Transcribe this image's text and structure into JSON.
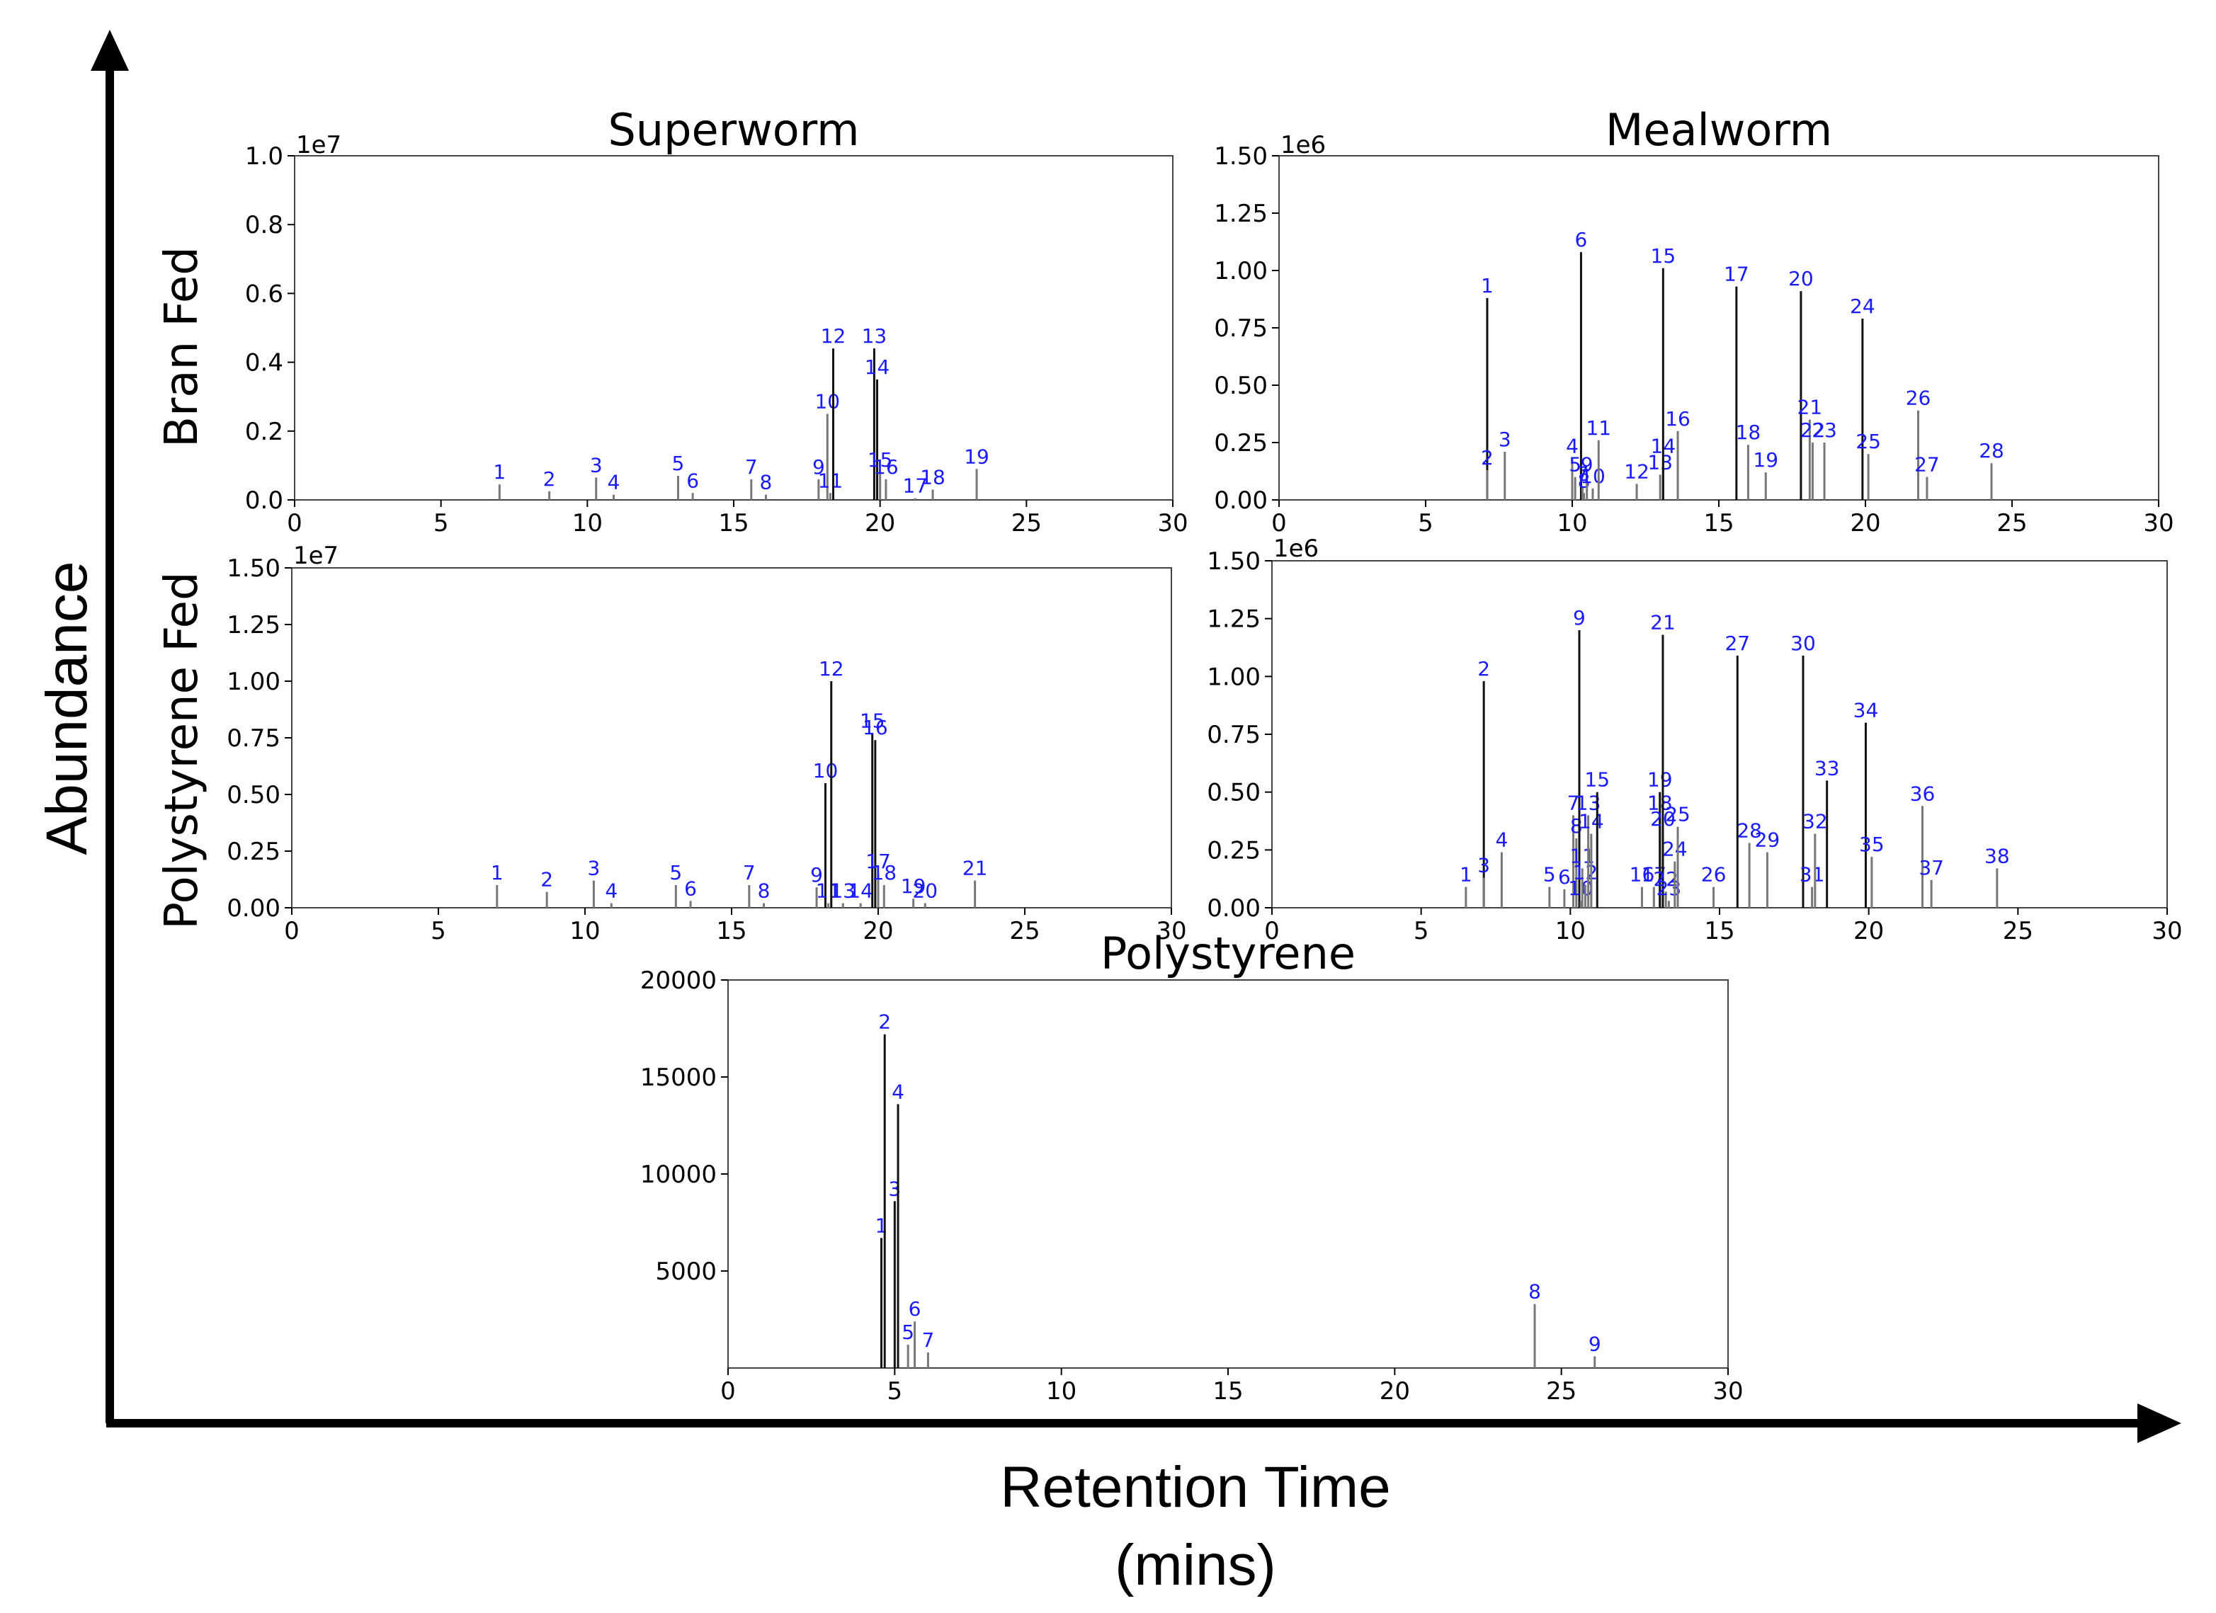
{
  "figure": {
    "y_axis_label": "Abundance",
    "x_axis_label_line1": "Retention Time",
    "x_axis_label_line2": "(mins)",
    "row_label_top": "Bran Fed",
    "row_label_bottom": "Polystyrene Fed"
  },
  "chart_data": [
    {
      "id": "sw_bran",
      "type": "bar",
      "title": "Superworm",
      "xlim": [
        0,
        30
      ],
      "ylim": [
        0,
        1.0
      ],
      "xticks": [
        0,
        5,
        10,
        15,
        20,
        25,
        30
      ],
      "yticks": [
        "0.0",
        "0.2",
        "0.4",
        "0.6",
        "0.8",
        "1.0"
      ],
      "ytick_values": [
        0,
        0.2,
        0.4,
        0.6,
        0.8,
        1.0
      ],
      "exponent": "1e7",
      "peaks": [
        {
          "label": "1",
          "x": 7.0,
          "y": 0.045
        },
        {
          "label": "2",
          "x": 8.7,
          "y": 0.025
        },
        {
          "label": "3",
          "x": 10.3,
          "y": 0.065
        },
        {
          "label": "4",
          "x": 10.9,
          "y": 0.015
        },
        {
          "label": "5",
          "x": 13.1,
          "y": 0.07
        },
        {
          "label": "6",
          "x": 13.6,
          "y": 0.02
        },
        {
          "label": "7",
          "x": 15.6,
          "y": 0.06
        },
        {
          "label": "8",
          "x": 16.1,
          "y": 0.015
        },
        {
          "label": "9",
          "x": 17.9,
          "y": 0.06
        },
        {
          "label": "10",
          "x": 18.2,
          "y": 0.25
        },
        {
          "label": "11",
          "x": 18.3,
          "y": 0.02
        },
        {
          "label": "12",
          "x": 18.4,
          "y": 0.44
        },
        {
          "label": "13",
          "x": 19.8,
          "y": 0.44
        },
        {
          "label": "14",
          "x": 19.9,
          "y": 0.35
        },
        {
          "label": "15",
          "x": 20.0,
          "y": 0.08
        },
        {
          "label": "16",
          "x": 20.2,
          "y": 0.06
        },
        {
          "label": "17",
          "x": 21.2,
          "y": 0.005
        },
        {
          "label": "18",
          "x": 21.8,
          "y": 0.03
        },
        {
          "label": "19",
          "x": 23.3,
          "y": 0.09
        }
      ]
    },
    {
      "id": "mw_bran",
      "type": "bar",
      "title": "Mealworm",
      "xlim": [
        0,
        30
      ],
      "ylim": [
        0,
        1.5
      ],
      "xticks": [
        0,
        5,
        10,
        15,
        20,
        25,
        30
      ],
      "yticks": [
        "0.00",
        "0.25",
        "0.50",
        "0.75",
        "1.00",
        "1.25",
        "1.50"
      ],
      "ytick_values": [
        0,
        0.25,
        0.5,
        0.75,
        1.0,
        1.25,
        1.5
      ],
      "exponent": "1e6",
      "peaks": [
        {
          "label": "1",
          "x": 7.1,
          "y": 0.88
        },
        {
          "label": "2",
          "x": 7.1,
          "y": 0.13
        },
        {
          "label": "3",
          "x": 7.7,
          "y": 0.21
        },
        {
          "label": "4",
          "x": 10.0,
          "y": 0.18
        },
        {
          "label": "5",
          "x": 10.1,
          "y": 0.1
        },
        {
          "label": "6",
          "x": 10.3,
          "y": 1.08
        },
        {
          "label": "7",
          "x": 10.35,
          "y": 0.06
        },
        {
          "label": "8",
          "x": 10.4,
          "y": 0.03
        },
        {
          "label": "9",
          "x": 10.5,
          "y": 0.1
        },
        {
          "label": "10",
          "x": 10.7,
          "y": 0.05
        },
        {
          "label": "11",
          "x": 10.9,
          "y": 0.26
        },
        {
          "label": "12",
          "x": 12.2,
          "y": 0.07
        },
        {
          "label": "13",
          "x": 13.0,
          "y": 0.11
        },
        {
          "label": "14",
          "x": 13.1,
          "y": 0.18
        },
        {
          "label": "15",
          "x": 13.1,
          "y": 1.01
        },
        {
          "label": "16",
          "x": 13.6,
          "y": 0.3
        },
        {
          "label": "17",
          "x": 15.6,
          "y": 0.93
        },
        {
          "label": "18",
          "x": 16.0,
          "y": 0.24
        },
        {
          "label": "19",
          "x": 16.6,
          "y": 0.12
        },
        {
          "label": "20",
          "x": 17.8,
          "y": 0.91
        },
        {
          "label": "21",
          "x": 18.1,
          "y": 0.35
        },
        {
          "label": "22",
          "x": 18.2,
          "y": 0.25
        },
        {
          "label": "23",
          "x": 18.6,
          "y": 0.25
        },
        {
          "label": "24",
          "x": 19.9,
          "y": 0.79
        },
        {
          "label": "25",
          "x": 20.1,
          "y": 0.2
        },
        {
          "label": "26",
          "x": 21.8,
          "y": 0.39
        },
        {
          "label": "27",
          "x": 22.1,
          "y": 0.1
        },
        {
          "label": "28",
          "x": 24.3,
          "y": 0.16
        }
      ]
    },
    {
      "id": "sw_ps",
      "type": "bar",
      "title": "",
      "xlim": [
        0,
        30
      ],
      "ylim": [
        0,
        1.5
      ],
      "xticks": [
        0,
        5,
        10,
        15,
        20,
        25,
        30
      ],
      "yticks": [
        "0.00",
        "0.25",
        "0.50",
        "0.75",
        "1.00",
        "1.25",
        "1.50"
      ],
      "ytick_values": [
        0,
        0.25,
        0.5,
        0.75,
        1.0,
        1.25,
        1.5
      ],
      "exponent": "1e7",
      "peaks": [
        {
          "label": "1",
          "x": 7.0,
          "y": 0.1
        },
        {
          "label": "2",
          "x": 8.7,
          "y": 0.07
        },
        {
          "label": "3",
          "x": 10.3,
          "y": 0.12
        },
        {
          "label": "4",
          "x": 10.9,
          "y": 0.02
        },
        {
          "label": "5",
          "x": 13.1,
          "y": 0.1
        },
        {
          "label": "6",
          "x": 13.6,
          "y": 0.03
        },
        {
          "label": "7",
          "x": 15.6,
          "y": 0.1
        },
        {
          "label": "8",
          "x": 16.1,
          "y": 0.02
        },
        {
          "label": "9",
          "x": 17.9,
          "y": 0.09
        },
        {
          "label": "10",
          "x": 18.2,
          "y": 0.55
        },
        {
          "label": "11",
          "x": 18.3,
          "y": 0.02
        },
        {
          "label": "12",
          "x": 18.4,
          "y": 1.0
        },
        {
          "label": "13",
          "x": 18.8,
          "y": 0.02
        },
        {
          "label": "14",
          "x": 19.4,
          "y": 0.02
        },
        {
          "label": "15",
          "x": 19.8,
          "y": 0.77
        },
        {
          "label": "16",
          "x": 19.9,
          "y": 0.74
        },
        {
          "label": "17",
          "x": 20.0,
          "y": 0.15
        },
        {
          "label": "18",
          "x": 20.2,
          "y": 0.1
        },
        {
          "label": "19",
          "x": 21.2,
          "y": 0.04
        },
        {
          "label": "20",
          "x": 21.6,
          "y": 0.02
        },
        {
          "label": "21",
          "x": 23.3,
          "y": 0.12
        }
      ]
    },
    {
      "id": "mw_ps",
      "type": "bar",
      "title": "",
      "xlim": [
        0,
        30
      ],
      "ylim": [
        0,
        1.5
      ],
      "xticks": [
        0,
        5,
        10,
        15,
        20,
        25,
        30
      ],
      "yticks": [
        "0.00",
        "0.25",
        "0.50",
        "0.75",
        "1.00",
        "1.25",
        "1.50"
      ],
      "ytick_values": [
        0,
        0.25,
        0.5,
        0.75,
        1.0,
        1.25,
        1.5
      ],
      "exponent": "1e6",
      "peaks": [
        {
          "label": "1",
          "x": 6.5,
          "y": 0.09
        },
        {
          "label": "2",
          "x": 7.1,
          "y": 0.98
        },
        {
          "label": "3",
          "x": 7.1,
          "y": 0.13
        },
        {
          "label": "4",
          "x": 7.7,
          "y": 0.24
        },
        {
          "label": "5",
          "x": 9.3,
          "y": 0.09
        },
        {
          "label": "6",
          "x": 9.8,
          "y": 0.08
        },
        {
          "label": "7",
          "x": 10.1,
          "y": 0.4
        },
        {
          "label": "8",
          "x": 10.2,
          "y": 0.3
        },
        {
          "label": "9",
          "x": 10.3,
          "y": 1.2
        },
        {
          "label": "10",
          "x": 10.35,
          "y": 0.03
        },
        {
          "label": "11",
          "x": 10.4,
          "y": 0.17
        },
        {
          "label": "12",
          "x": 10.5,
          "y": 0.1
        },
        {
          "label": "13",
          "x": 10.6,
          "y": 0.4
        },
        {
          "label": "14",
          "x": 10.7,
          "y": 0.32
        },
        {
          "label": "15",
          "x": 10.9,
          "y": 0.5
        },
        {
          "label": "16",
          "x": 12.4,
          "y": 0.09
        },
        {
          "label": "17",
          "x": 12.8,
          "y": 0.09
        },
        {
          "label": "18",
          "x": 13.0,
          "y": 0.4
        },
        {
          "label": "19",
          "x": 13.0,
          "y": 0.5
        },
        {
          "label": "20",
          "x": 13.1,
          "y": 0.33
        },
        {
          "label": "21",
          "x": 13.1,
          "y": 1.18
        },
        {
          "label": "22",
          "x": 13.2,
          "y": 0.07
        },
        {
          "label": "23",
          "x": 13.3,
          "y": 0.03
        },
        {
          "label": "24",
          "x": 13.5,
          "y": 0.2
        },
        {
          "label": "25",
          "x": 13.6,
          "y": 0.35
        },
        {
          "label": "26",
          "x": 14.8,
          "y": 0.09
        },
        {
          "label": "27",
          "x": 15.6,
          "y": 1.09
        },
        {
          "label": "28",
          "x": 16.0,
          "y": 0.28
        },
        {
          "label": "29",
          "x": 16.6,
          "y": 0.24
        },
        {
          "label": "30",
          "x": 17.8,
          "y": 1.09
        },
        {
          "label": "31",
          "x": 18.1,
          "y": 0.09
        },
        {
          "label": "32",
          "x": 18.2,
          "y": 0.32
        },
        {
          "label": "33",
          "x": 18.6,
          "y": 0.55
        },
        {
          "label": "34",
          "x": 19.9,
          "y": 0.8
        },
        {
          "label": "35",
          "x": 20.1,
          "y": 0.22
        },
        {
          "label": "36",
          "x": 21.8,
          "y": 0.44
        },
        {
          "label": "37",
          "x": 22.1,
          "y": 0.12
        },
        {
          "label": "38",
          "x": 24.3,
          "y": 0.17
        }
      ]
    },
    {
      "id": "ps",
      "type": "bar",
      "title": "Polystyrene",
      "xlim": [
        0,
        30
      ],
      "ylim": [
        0,
        20000
      ],
      "xticks": [
        0,
        5,
        10,
        15,
        20,
        25,
        30
      ],
      "yticks": [
        "5000",
        "10000",
        "15000",
        "20000"
      ],
      "ytick_values": [
        5000,
        10000,
        15000,
        20000
      ],
      "exponent": "",
      "peaks": [
        {
          "label": "1",
          "x": 4.6,
          "y": 6700
        },
        {
          "label": "2",
          "x": 4.7,
          "y": 17200
        },
        {
          "label": "3",
          "x": 5.0,
          "y": 8600
        },
        {
          "label": "4",
          "x": 5.1,
          "y": 13600
        },
        {
          "label": "5",
          "x": 5.4,
          "y": 1200
        },
        {
          "label": "6",
          "x": 5.6,
          "y": 2400
        },
        {
          "label": "7",
          "x": 6.0,
          "y": 800
        },
        {
          "label": "8",
          "x": 24.2,
          "y": 3300
        },
        {
          "label": "9",
          "x": 26.0,
          "y": 600
        }
      ]
    }
  ]
}
